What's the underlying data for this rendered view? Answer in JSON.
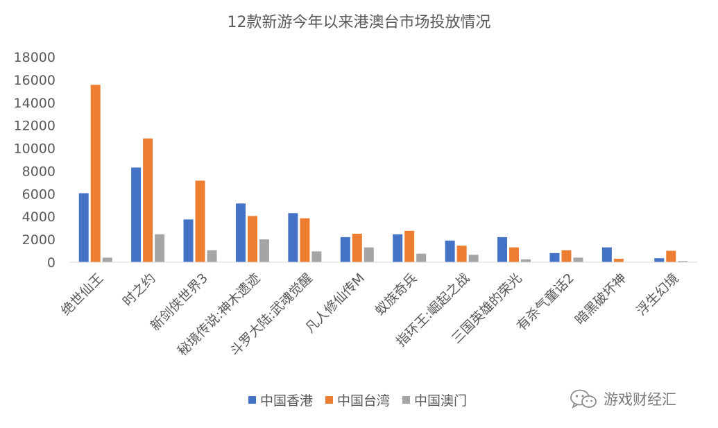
{
  "chart_data": {
    "type": "bar",
    "title": "12款新游今年以来港澳台市场投放情况",
    "xlabel": "",
    "ylabel": "",
    "ylim": [
      0,
      18000
    ],
    "yticks": [
      0,
      2000,
      4000,
      6000,
      8000,
      10000,
      12000,
      14000,
      16000,
      18000
    ],
    "grid": false,
    "legend_position": "bottom",
    "categories": [
      "绝世仙王",
      "时之约",
      "新剑侠世界3",
      "秘境传说:神木遗迹",
      "斗罗大陆:武魂觉醒",
      "凡人修仙传M",
      "蚁族奇兵",
      "指环王:崛起之战",
      "三国英雄的荣光",
      "有杀气童话2",
      "暗黑破坏神",
      "浮生幻境"
    ],
    "series": [
      {
        "name": "中国香港",
        "color": "#4472C4",
        "values": [
          6050,
          8300,
          3750,
          5150,
          4300,
          2200,
          2450,
          1900,
          2200,
          800,
          1300,
          350
        ]
      },
      {
        "name": "中国台湾",
        "color": "#ED7D31",
        "values": [
          15550,
          10850,
          7150,
          4050,
          3850,
          2500,
          2750,
          1450,
          1300,
          1050,
          300,
          1000
        ]
      },
      {
        "name": "中国澳门",
        "color": "#A5A5A5",
        "values": [
          400,
          2450,
          1050,
          2000,
          950,
          1300,
          750,
          650,
          250,
          400,
          0,
          100
        ]
      }
    ]
  },
  "watermark": {
    "text": "游戏财经汇",
    "icon": "wechat-icon"
  }
}
